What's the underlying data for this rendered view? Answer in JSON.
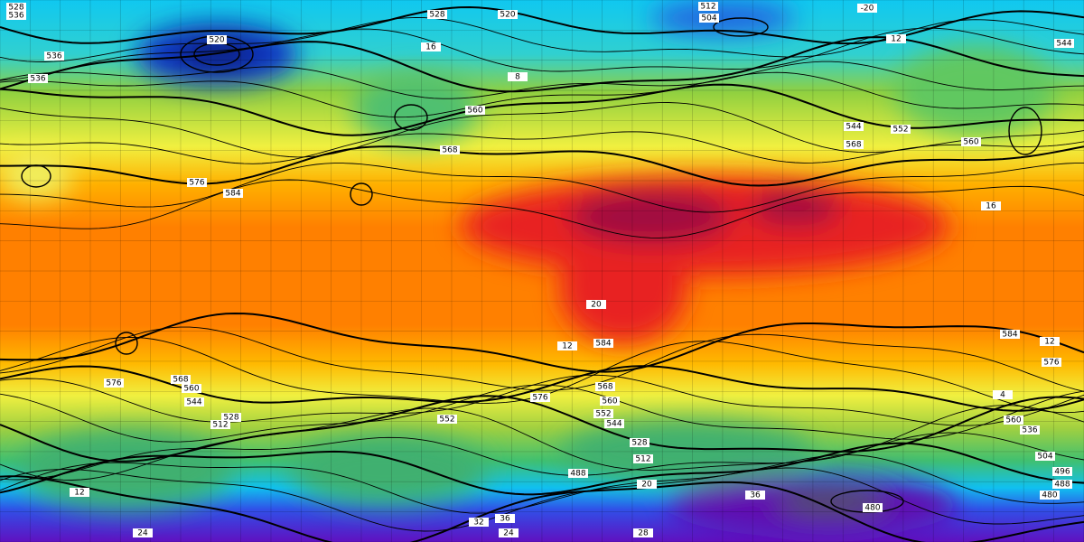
{
  "map": {
    "contour_labels": [
      "528",
      "536",
      "512",
      "504",
      "520",
      "528",
      "-20",
      "536",
      "536",
      "520",
      "560",
      "568",
      "568",
      "560",
      "544",
      "552",
      "576",
      "584",
      "16",
      "584",
      "576",
      "576",
      "568",
      "560",
      "544",
      "528",
      "512",
      "576",
      "568",
      "560",
      "552",
      "544",
      "528",
      "512",
      "552",
      "488",
      "480",
      "12",
      "24",
      "32",
      "36",
      "24",
      "28",
      "20",
      "36",
      "12",
      "584",
      "20",
      "496",
      "488",
      "480",
      "560",
      "536",
      "504",
      "12",
      "4",
      "8",
      "544",
      "16",
      "12"
    ]
  }
}
